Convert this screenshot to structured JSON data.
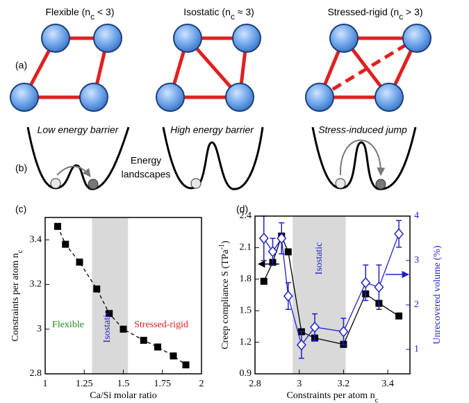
{
  "figure": {
    "panel_labels": [
      "(a)",
      "(b)",
      "(c)",
      "(d)"
    ],
    "network_titles": [
      {
        "text": "Flexible (n",
        "sub": "c",
        "rest": " < 3)"
      },
      {
        "text": "Isostatic (n",
        "sub": "c",
        "rest": " ≈ 3)"
      },
      {
        "text": "Stressed-rigid (n",
        "sub": "c",
        "rest": " > 3)"
      }
    ],
    "barrier_labels": [
      "Low energy barrier",
      "High energy barrier",
      "Stress-induced jump"
    ],
    "landscape_label": [
      "Energy",
      "landscapes"
    ]
  },
  "chart_data": [
    {
      "type": "scatter",
      "x_label": "Ca/Si molar ratio",
      "y_label": "Constraints per atom n",
      "y_label_sub": "c",
      "x": [
        1.08,
        1.13,
        1.22,
        1.33,
        1.41,
        1.5,
        1.63,
        1.72,
        1.82,
        1.9
      ],
      "series": [
        {
          "color": "#000000",
          "marker": "square",
          "line": "dashed",
          "values": [
            3.46,
            3.38,
            3.3,
            3.18,
            3.07,
            3.0,
            2.95,
            2.92,
            2.88,
            2.84
          ]
        }
      ],
      "xlim": [
        1,
        2
      ],
      "xticks": [
        1,
        1.25,
        1.5,
        1.75,
        2
      ],
      "ylim": [
        2.8,
        3.5
      ],
      "yticks": [
        2.8,
        3,
        3.2,
        3.4
      ],
      "band": [
        1.3,
        1.53
      ],
      "annotations": [
        {
          "text": "Flexible",
          "color": "#1a8c1a"
        },
        {
          "text": "Isostatic",
          "color": "#1f1fcc"
        },
        {
          "text": "Stressed-rigid",
          "color": "#e01b1b"
        }
      ]
    },
    {
      "type": "scatter",
      "x_label": "Constraints per atom n",
      "x_label_sub": "c",
      "y_label": "Creep compliance S (TPa",
      "y_label_sup": "-1",
      "y_label_end": ")",
      "y2_label": "Unrecovered volume (%)",
      "x": [
        2.84,
        2.88,
        2.92,
        2.95,
        3.01,
        3.07,
        3.2,
        3.3,
        3.36,
        3.45
      ],
      "series": [
        {
          "color": "#000000",
          "marker": "square",
          "line": "solid",
          "values": [
            1.78,
            1.96,
            2.21,
            2.06,
            1.3,
            1.24,
            1.18,
            1.66,
            1.57,
            1.45
          ]
        },
        {
          "color": "#1f1fcc",
          "marker": "diamond",
          "line": "solid",
          "axis": "y2",
          "values": [
            3.5,
            3.2,
            3.5,
            2.2,
            1.1,
            1.5,
            1.4,
            2.5,
            2.4,
            3.6
          ],
          "errors": [
            0.5,
            0.3,
            0.35,
            0.3,
            0.3,
            0.3,
            0.3,
            0.4,
            0.5,
            0.3
          ]
        }
      ],
      "xlim": [
        2.8,
        3.5
      ],
      "xticks": [
        2.8,
        3,
        3.2,
        3.4
      ],
      "ylim": [
        0.9,
        2.4
      ],
      "yticks": [
        0.9,
        1.2,
        1.5,
        1.8,
        2.1,
        2.4
      ],
      "y2lim": [
        0.45,
        4
      ],
      "y2ticks": [
        1,
        2,
        3,
        4
      ],
      "band": [
        2.97,
        3.21
      ],
      "annotations": [
        {
          "text": "Isostatic",
          "color": "#1f1fcc"
        }
      ]
    }
  ]
}
